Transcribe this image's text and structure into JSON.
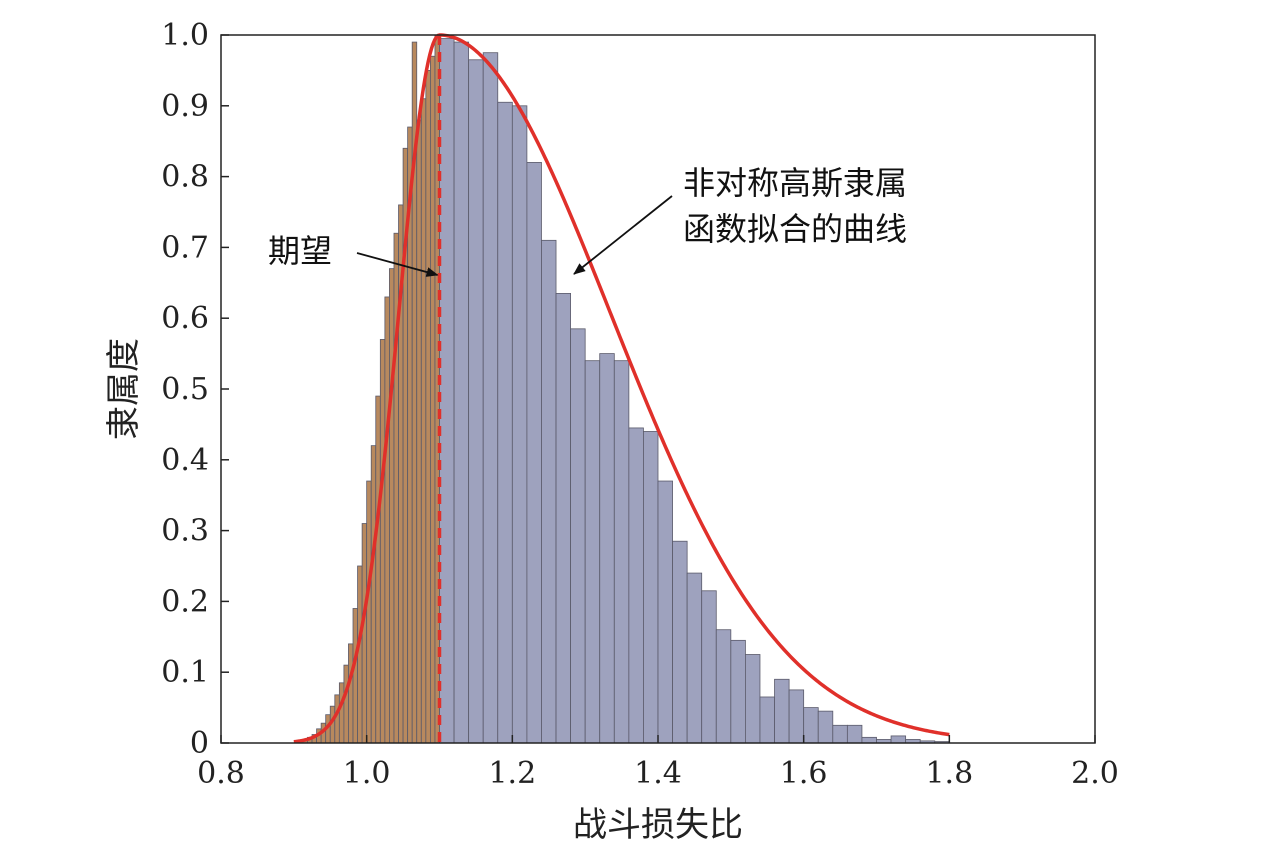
{
  "chart_data": {
    "type": "bar",
    "xlabel": "战斗损失比",
    "ylabel": "隶属度",
    "xlim": [
      0.8,
      2.0
    ],
    "ylim": [
      0,
      1.0
    ],
    "x_ticks": [
      "0.8",
      "1.0",
      "1.2",
      "1.4",
      "1.6",
      "1.8",
      "2.0"
    ],
    "y_ticks": [
      "0",
      "0.1",
      "0.2",
      "0.3",
      "0.4",
      "0.5",
      "0.6",
      "0.7",
      "0.8",
      "0.9",
      "1.0"
    ],
    "grid": false,
    "colors": {
      "left_bars": "#b8895e",
      "right_bars": "#9ea2be",
      "curve": "#e0302a",
      "expectation": "#e0302a"
    },
    "left_series": {
      "name": "",
      "bin_width": 0.00625,
      "x": [
        0.9,
        0.90625,
        0.9125,
        0.91875,
        0.925,
        0.93125,
        0.9375,
        0.94375,
        0.95,
        0.95625,
        0.9625,
        0.96875,
        0.975,
        0.98125,
        0.9875,
        0.99375,
        1.0,
        1.00625,
        1.0125,
        1.01875,
        1.025,
        1.03125,
        1.0375,
        1.04375,
        1.05,
        1.05625,
        1.0625,
        1.06875,
        1.075,
        1.08125,
        1.0875,
        1.09375
      ],
      "values": [
        0.0,
        0.002,
        0.004,
        0.008,
        0.012,
        0.02,
        0.028,
        0.04,
        0.052,
        0.068,
        0.085,
        0.11,
        0.14,
        0.19,
        0.25,
        0.31,
        0.37,
        0.42,
        0.49,
        0.57,
        0.63,
        0.67,
        0.72,
        0.76,
        0.84,
        0.87,
        0.99,
        0.88,
        0.91,
        0.95,
        0.97,
        1.0
      ]
    },
    "right_series": {
      "name": "",
      "bin_width": 0.02,
      "x": [
        1.1,
        1.12,
        1.14,
        1.16,
        1.18,
        1.2,
        1.22,
        1.24,
        1.26,
        1.28,
        1.3,
        1.32,
        1.34,
        1.36,
        1.38,
        1.4,
        1.42,
        1.44,
        1.46,
        1.48,
        1.5,
        1.52,
        1.54,
        1.56,
        1.58,
        1.6,
        1.62,
        1.64,
        1.66,
        1.68,
        1.7,
        1.72,
        1.74,
        1.76,
        1.78
      ],
      "values": [
        0.995,
        0.99,
        0.965,
        0.975,
        0.905,
        0.9,
        0.82,
        0.71,
        0.635,
        0.585,
        0.54,
        0.55,
        0.54,
        0.445,
        0.44,
        0.37,
        0.285,
        0.24,
        0.215,
        0.16,
        0.145,
        0.125,
        0.065,
        0.09,
        0.075,
        0.05,
        0.045,
        0.025,
        0.025,
        0.008,
        0.005,
        0.01,
        0.005,
        0.003,
        0.002
      ]
    },
    "fitted_curve": {
      "name": "非对称高斯隶属函数拟合的曲线",
      "peak_x": 1.1,
      "sigma_left": 0.056,
      "sigma_right": 0.235
    },
    "expectation_line_x": 1.1,
    "annotations": [
      {
        "text": "期望",
        "points_to": "expectation_line"
      },
      {
        "text_lines": [
          "非对称高斯隶属",
          "函数拟合的曲线"
        ],
        "points_to": "fitted_curve"
      }
    ]
  }
}
